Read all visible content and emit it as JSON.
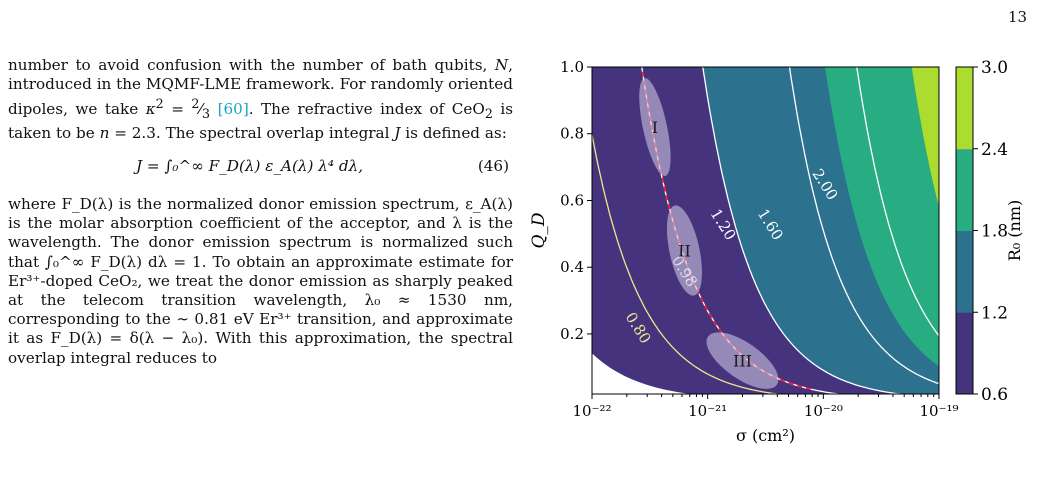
{
  "page_number": "13",
  "text": {
    "para1": "number to avoid confusion with the number of bath qubits, N, introduced in the MQMF-LME framework. For randomly oriented dipoles, we take κ² = ⅔ [60]. The refractive index of CeO₂ is taken to be n = 2.3. The spectral overlap integral J is defined as:",
    "cite": "[60]",
    "equation": "J = ∫₀^∞ F_D(λ) ε_A(λ) λ⁴ dλ,",
    "equation_number": "(46)",
    "para2": "where F_D(λ) is the normalized donor emission spectrum, ε_A(λ) is the molar absorption coefficient of the acceptor, and λ is the wavelength. The donor emission spectrum is normalized such that ∫₀^∞ F_D(λ) dλ = 1. To obtain an approximate estimate for Er³⁺-doped CeO₂, we treat the donor emission as sharply peaked at the telecom transition wavelength, λ₀ ≈ 1530 nm, corresponding to the ∼ 0.81 eV Er³⁺ transition, and approximate it as F_D(λ) = δ(λ − λ₀). With this approximation, the spectral overlap integral reduces to"
  },
  "chart_data": {
    "type": "heatmap",
    "xlabel": "σ (cm²)",
    "ylabel": "Q_D",
    "x_scale": "log",
    "x_ticks": [
      "10⁻²²",
      "10⁻²¹",
      "10⁻²⁰",
      "10⁻¹⁹"
    ],
    "y_ticks": [
      "0.2",
      "0.4",
      "0.6",
      "0.8",
      "1.0"
    ],
    "xlim": [
      1e-22,
      1e-19
    ],
    "ylim": [
      0.02,
      1.0
    ],
    "colorbar": {
      "label": "R₀ (nm)",
      "ticks": [
        "0.6",
        "1.2",
        "1.8",
        "2.4",
        "3.0"
      ],
      "levels": [
        0.6,
        1.2,
        1.8,
        2.4,
        3.0
      ],
      "colors": [
        "#46337e",
        "#2c728e",
        "#27ad81",
        "#addc30"
      ]
    },
    "contour_lines": [
      {
        "label": "0.80",
        "value": 0.8,
        "color": "#f0e68c"
      },
      {
        "label": "0.98",
        "value": 0.98,
        "color": "#ffffff"
      },
      {
        "label": "1.20",
        "value": 1.2,
        "color": "#ffffff"
      },
      {
        "label": "1.60",
        "value": 1.6,
        "color": "#ffffff"
      },
      {
        "label": "2.00",
        "value": 2.0,
        "color": "#ffffff"
      }
    ],
    "regions": [
      {
        "label": "I",
        "sigma": 3.5e-22,
        "Q": 0.82
      },
      {
        "label": "II",
        "sigma": 6.3e-22,
        "Q": 0.45
      },
      {
        "label": "III",
        "sigma": 2e-21,
        "Q": 0.12
      }
    ]
  }
}
